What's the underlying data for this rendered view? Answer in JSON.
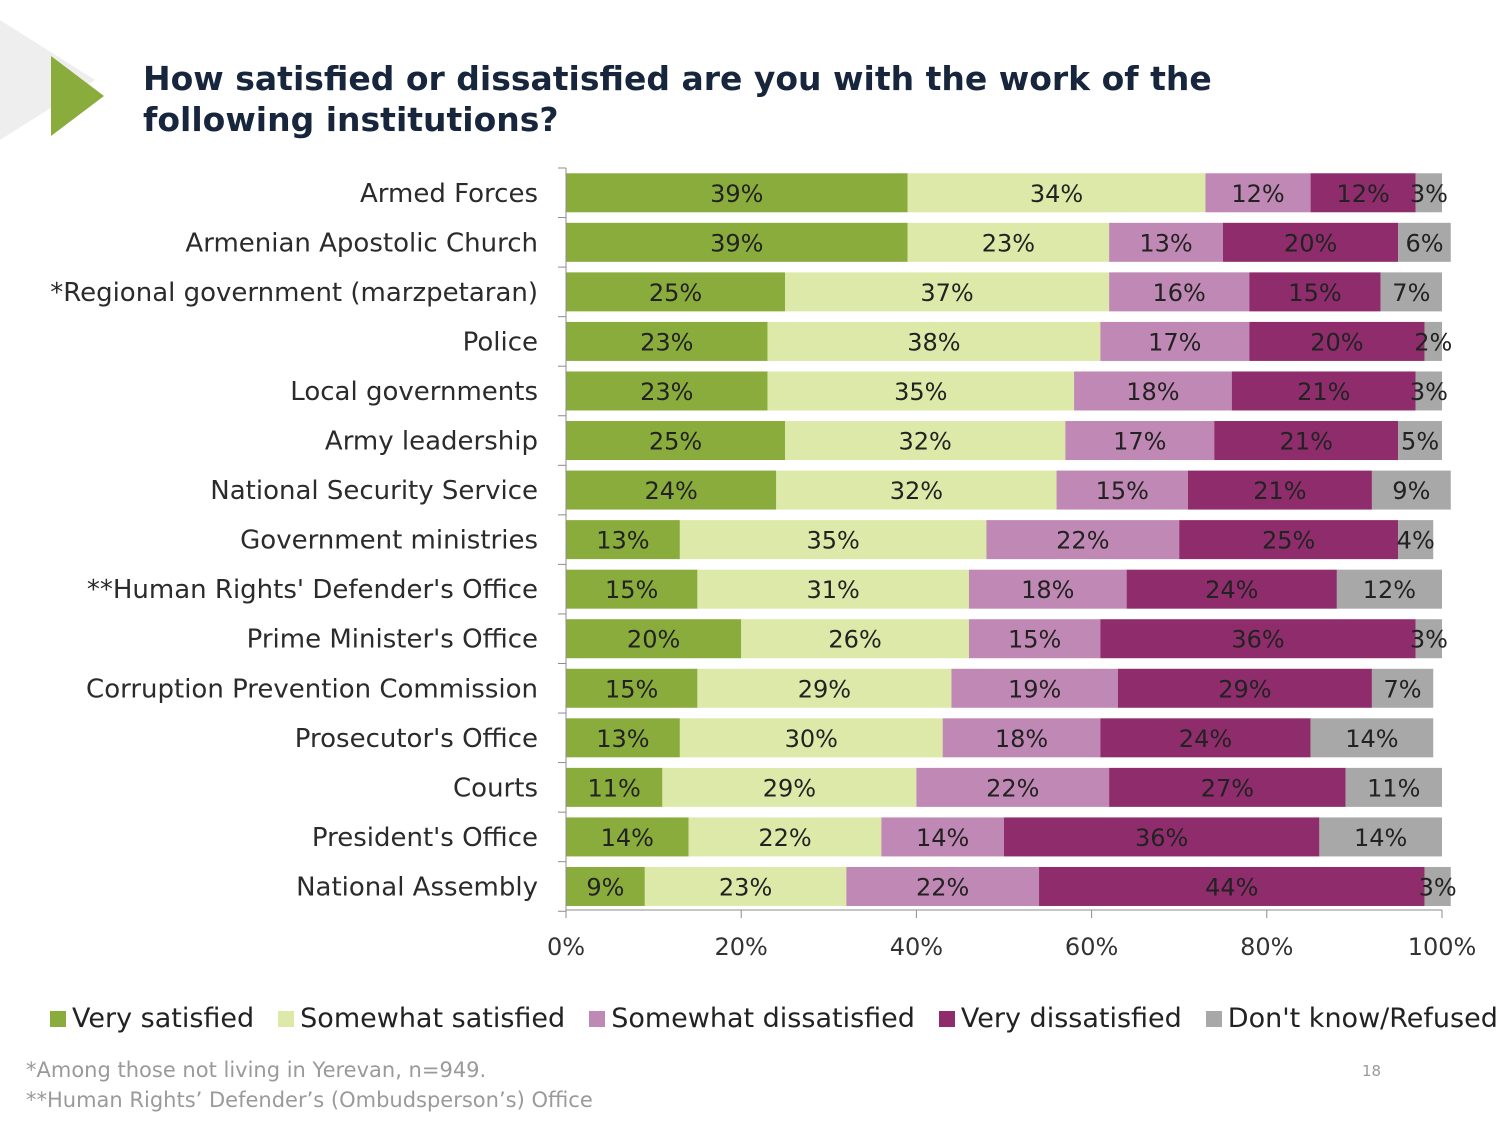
{
  "title": "How satisfied or dissatisfied are you with the work of the following institutions?",
  "colors": {
    "accent": "#8aac3c",
    "title": "#17263c",
    "series": [
      "#8aac3c",
      "#dde9a9",
      "#c088b4",
      "#8e2c6c",
      "#a8a8a8"
    ]
  },
  "chart_data": {
    "type": "bar",
    "orientation": "horizontal",
    "stacked": true,
    "title": "How satisfied or dissatisfied are you with the work of the following institutions?",
    "xlabel": "",
    "ylabel": "",
    "xlim": [
      0,
      100
    ],
    "x_ticks": [
      "0%",
      "20%",
      "40%",
      "60%",
      "80%",
      "100%"
    ],
    "categories": [
      "Armed Forces",
      "Armenian Apostolic Church",
      "*Regional government (marzpetaran)",
      "Police",
      "Local governments",
      "Army leadership",
      "National Security Service",
      "Government ministries",
      "**Human Rights' Defender's Office",
      "Prime Minister's Office",
      "Corruption Prevention Commission",
      "Prosecutor's Office",
      "Courts",
      "President's Office",
      "National Assembly"
    ],
    "series": [
      {
        "name": "Very satisfied",
        "values": [
          39,
          39,
          25,
          23,
          23,
          25,
          24,
          13,
          15,
          20,
          15,
          13,
          11,
          14,
          9
        ]
      },
      {
        "name": "Somewhat satisfied",
        "values": [
          34,
          23,
          37,
          38,
          35,
          32,
          32,
          35,
          31,
          26,
          29,
          30,
          29,
          22,
          23
        ]
      },
      {
        "name": "Somewhat dissatisfied",
        "values": [
          12,
          13,
          16,
          17,
          18,
          17,
          15,
          22,
          18,
          15,
          19,
          18,
          22,
          14,
          22
        ]
      },
      {
        "name": "Very dissatisfied",
        "values": [
          12,
          20,
          15,
          20,
          21,
          21,
          21,
          25,
          24,
          36,
          29,
          24,
          27,
          36,
          44
        ]
      },
      {
        "name": "Don't know/Refused",
        "values": [
          3,
          6,
          7,
          2,
          3,
          5,
          9,
          4,
          12,
          3,
          7,
          14,
          11,
          14,
          3
        ]
      }
    ],
    "legend_position": "bottom",
    "grid": false
  },
  "footnotes": {
    "line1": "*Among those not living in Yerevan, n=949.",
    "line2": "**Human Rights’ Defender’s (Ombudsperson’s) Office"
  },
  "page_number": "18"
}
